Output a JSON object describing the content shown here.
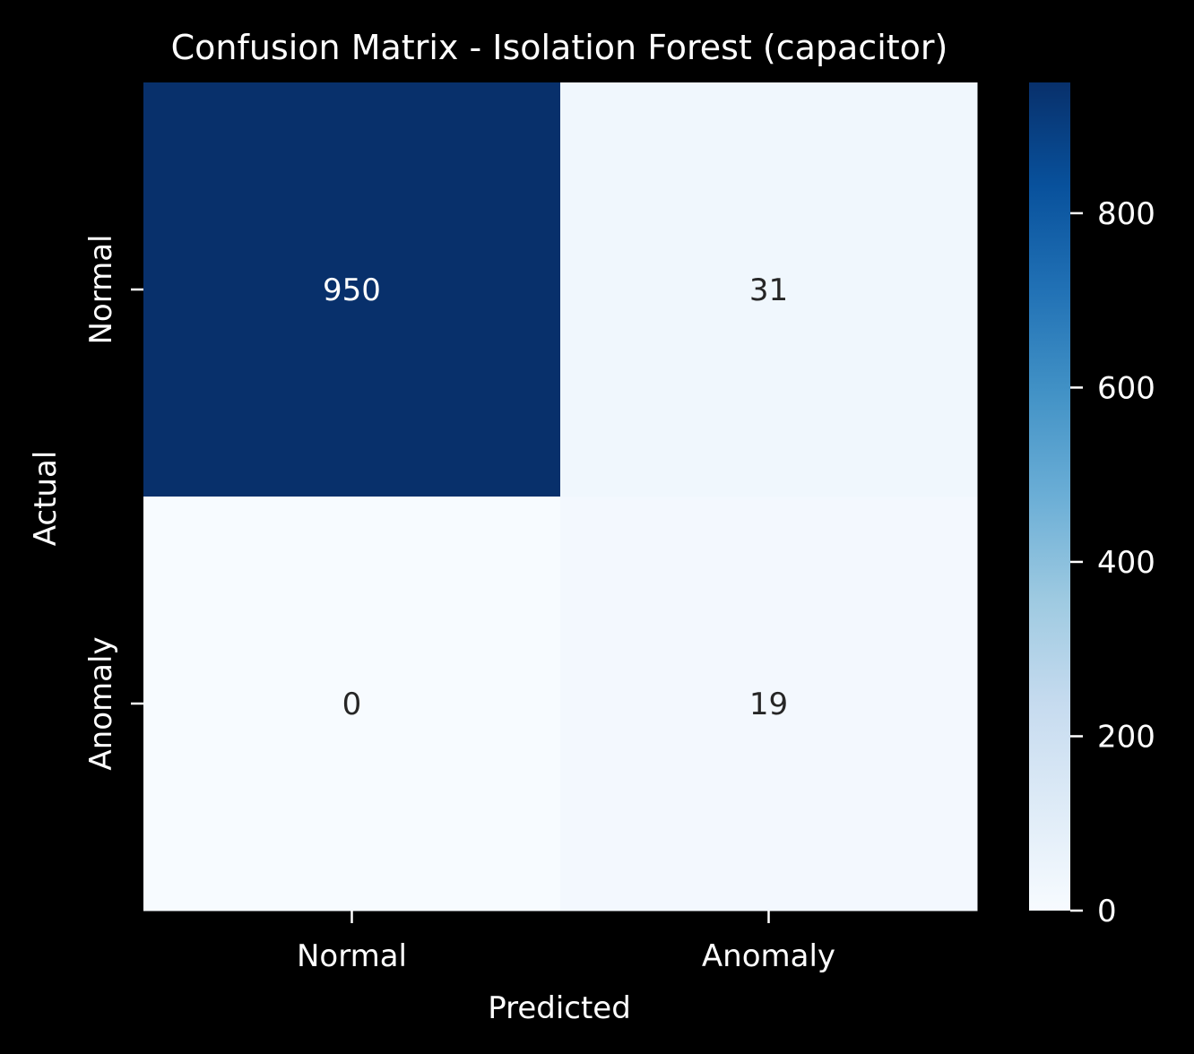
{
  "chart_data": {
    "type": "heatmap",
    "title": "Confusion Matrix - Isolation Forest (capacitor)",
    "xlabel": "Predicted",
    "ylabel": "Actual",
    "x_categories": [
      "Normal",
      "Anomaly"
    ],
    "y_categories": [
      "Normal",
      "Anomaly"
    ],
    "values": [
      [
        950,
        31
      ],
      [
        0,
        19
      ]
    ],
    "colormap": "Blues",
    "colorbar": {
      "min": 0,
      "max": 950,
      "ticks": [
        0,
        200,
        400,
        600,
        800
      ],
      "tick_labels": [
        "0",
        "200",
        "400",
        "600",
        "800"
      ]
    },
    "colors": {
      "background": "#000000",
      "text_light": "#ffffff",
      "text_dark": "#262626"
    }
  }
}
